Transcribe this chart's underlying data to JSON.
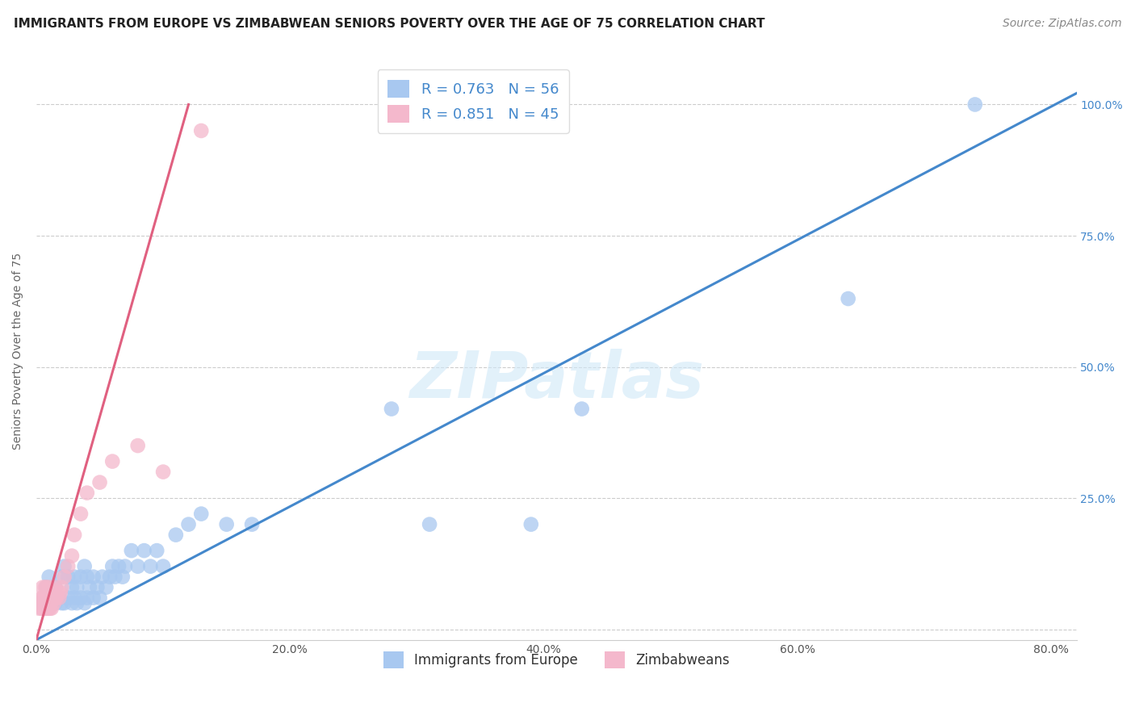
{
  "title": "IMMIGRANTS FROM EUROPE VS ZIMBABWEAN SENIORS POVERTY OVER THE AGE OF 75 CORRELATION CHART",
  "source": "Source: ZipAtlas.com",
  "ylabel": "Seniors Poverty Over the Age of 75",
  "xlim": [
    0.0,
    0.82
  ],
  "ylim": [
    -0.02,
    1.08
  ],
  "xtick_vals": [
    0.0,
    0.1,
    0.2,
    0.3,
    0.4,
    0.5,
    0.6,
    0.7,
    0.8
  ],
  "xtick_labels": [
    "0.0%",
    "",
    "20.0%",
    "",
    "40.0%",
    "",
    "60.0%",
    "",
    "80.0%"
  ],
  "ytick_vals": [
    0.0,
    0.25,
    0.5,
    0.75,
    1.0
  ],
  "ytick_labels": [
    "",
    "25.0%",
    "50.0%",
    "75.0%",
    "100.0%"
  ],
  "blue_R": "R = 0.763",
  "blue_N": "N = 56",
  "pink_R": "R = 0.851",
  "pink_N": "N = 45",
  "blue_color": "#a8c8f0",
  "pink_color": "#f4b8cc",
  "blue_line_color": "#4488cc",
  "pink_line_color": "#e06080",
  "legend_label_blue": "Immigrants from Europe",
  "legend_label_pink": "Zimbabweans",
  "watermark_text": "ZIPatlas",
  "background_color": "#ffffff",
  "grid_color": "#cccccc",
  "blue_line_slope": 1.27,
  "blue_line_intercept": -0.02,
  "pink_line_slope": 8.5,
  "pink_line_intercept": -0.02,
  "blue_scatter_x": [
    0.005,
    0.008,
    0.01,
    0.01,
    0.012,
    0.015,
    0.015,
    0.018,
    0.02,
    0.02,
    0.022,
    0.022,
    0.025,
    0.025,
    0.028,
    0.028,
    0.03,
    0.03,
    0.032,
    0.032,
    0.035,
    0.035,
    0.038,
    0.038,
    0.04,
    0.04,
    0.042,
    0.045,
    0.045,
    0.048,
    0.05,
    0.052,
    0.055,
    0.058,
    0.06,
    0.062,
    0.065,
    0.068,
    0.07,
    0.075,
    0.08,
    0.085,
    0.09,
    0.095,
    0.1,
    0.11,
    0.12,
    0.13,
    0.15,
    0.17,
    0.28,
    0.31,
    0.39,
    0.43,
    0.64,
    0.74
  ],
  "blue_scatter_y": [
    0.05,
    0.08,
    0.05,
    0.1,
    0.06,
    0.05,
    0.08,
    0.06,
    0.05,
    0.1,
    0.05,
    0.12,
    0.06,
    0.1,
    0.05,
    0.08,
    0.06,
    0.1,
    0.05,
    0.08,
    0.06,
    0.1,
    0.05,
    0.12,
    0.06,
    0.1,
    0.08,
    0.06,
    0.1,
    0.08,
    0.06,
    0.1,
    0.08,
    0.1,
    0.12,
    0.1,
    0.12,
    0.1,
    0.12,
    0.15,
    0.12,
    0.15,
    0.12,
    0.15,
    0.12,
    0.18,
    0.2,
    0.22,
    0.2,
    0.2,
    0.42,
    0.2,
    0.2,
    0.42,
    0.63,
    1.0
  ],
  "pink_scatter_x": [
    0.002,
    0.003,
    0.004,
    0.004,
    0.005,
    0.005,
    0.005,
    0.006,
    0.006,
    0.007,
    0.007,
    0.007,
    0.008,
    0.008,
    0.008,
    0.009,
    0.009,
    0.01,
    0.01,
    0.01,
    0.011,
    0.011,
    0.012,
    0.012,
    0.013,
    0.014,
    0.014,
    0.015,
    0.015,
    0.016,
    0.017,
    0.018,
    0.019,
    0.02,
    0.022,
    0.025,
    0.028,
    0.03,
    0.035,
    0.04,
    0.05,
    0.06,
    0.08,
    0.1,
    0.13
  ],
  "pink_scatter_y": [
    0.04,
    0.05,
    0.04,
    0.06,
    0.04,
    0.06,
    0.08,
    0.04,
    0.06,
    0.04,
    0.06,
    0.08,
    0.04,
    0.06,
    0.08,
    0.04,
    0.06,
    0.04,
    0.06,
    0.08,
    0.04,
    0.06,
    0.04,
    0.06,
    0.06,
    0.05,
    0.07,
    0.06,
    0.08,
    0.06,
    0.07,
    0.06,
    0.07,
    0.08,
    0.1,
    0.12,
    0.14,
    0.18,
    0.22,
    0.26,
    0.28,
    0.32,
    0.35,
    0.3,
    0.95
  ],
  "title_fontsize": 11,
  "axis_fontsize": 10,
  "tick_fontsize": 10,
  "legend_fontsize": 13,
  "source_fontsize": 10
}
